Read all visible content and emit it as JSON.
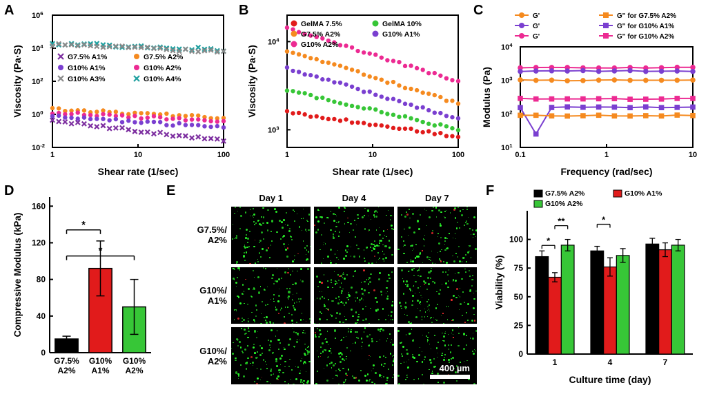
{
  "panels": {
    "A": "A",
    "B": "B",
    "C": "C",
    "D": "D",
    "E": "E",
    "F": "F"
  },
  "colors": {
    "red": "#e11b1b",
    "orange": "#f58a1f",
    "green": "#37c637",
    "purple": "#7a3fd0",
    "magenta": "#ec2a92",
    "teal": "#1fa0a0",
    "gray": "#8a8a8a",
    "darkpurple": "#7d2fa0",
    "black": "#000000",
    "axis": "#000000",
    "bg": "#ffffff",
    "imgBg": "#000000",
    "cellGreen": "#2bff2b",
    "cellRed": "#ff3030"
  },
  "A": {
    "title": "",
    "xlabel": "Shear rate (1/sec)",
    "ylabel": "Viscosity (Pa·S)",
    "xlog": [
      1,
      100
    ],
    "ytick_exp": [
      -2,
      0,
      2,
      4,
      6
    ],
    "legend": [
      {
        "marker": "x",
        "color": "#7d2fa0",
        "label": "G7.5% A1%"
      },
      {
        "marker": "circle",
        "color": "#f58a1f",
        "label": "G7.5% A2%"
      },
      {
        "marker": "circle",
        "color": "#7a3fd0",
        "label": "G10% A1%"
      },
      {
        "marker": "circle",
        "color": "#ec2a92",
        "label": "G10% A2%"
      },
      {
        "marker": "x",
        "color": "#8a8a8a",
        "label": "G10% A3%"
      },
      {
        "marker": "x",
        "color": "#1fa0a0",
        "label": "G10% A4%"
      }
    ],
    "series": [
      {
        "color": "#1fa0a0",
        "marker": "x",
        "yExpStart": 4.3,
        "yExpEnd": 3.9
      },
      {
        "color": "#8a8a8a",
        "marker": "x",
        "yExpStart": 4.2,
        "yExpEnd": 3.8
      },
      {
        "color": "#f58a1f",
        "marker": "circle",
        "yExpStart": 0.3,
        "yExpEnd": -0.2
      },
      {
        "color": "#ec2a92",
        "marker": "circle",
        "yExpStart": 0.1,
        "yExpEnd": -0.4
      },
      {
        "color": "#7a3fd0",
        "marker": "circle",
        "yExpStart": -0.1,
        "yExpEnd": -0.8
      },
      {
        "color": "#7d2fa0",
        "marker": "x",
        "yExpStart": -0.4,
        "yExpEnd": -1.6
      }
    ],
    "n": 28
  },
  "B": {
    "xlabel": "Shear rate (1/sec)",
    "ylabel": "Viscosity (Pa·S)",
    "xlog": [
      1,
      100
    ],
    "ytick_exp": [
      3,
      4
    ],
    "legend": [
      {
        "marker": "circle",
        "color": "#e11b1b",
        "label": "GelMA 7.5%"
      },
      {
        "marker": "circle",
        "color": "#37c637",
        "label": "GelMA 10%"
      },
      {
        "marker": "circle",
        "color": "#f58a1f",
        "label": "G7.5% A2%"
      },
      {
        "marker": "circle",
        "color": "#7a3fd0",
        "label": "G10% A1%"
      },
      {
        "marker": "circle",
        "color": "#ec2a92",
        "label": "G10% A2%"
      }
    ],
    "series": [
      {
        "color": "#ec2a92",
        "yExpStart": 4.15,
        "yExpEnd": 3.55
      },
      {
        "color": "#f58a1f",
        "yExpStart": 3.9,
        "yExpEnd": 3.3
      },
      {
        "color": "#7a3fd0",
        "yExpStart": 3.7,
        "yExpEnd": 3.12
      },
      {
        "color": "#37c637",
        "yExpStart": 3.45,
        "yExpEnd": 3.0
      },
      {
        "color": "#e11b1b",
        "yExpStart": 3.2,
        "yExpEnd": 2.92
      }
    ],
    "n": 30
  },
  "C": {
    "xlabel": "Frequency (rad/sec)",
    "ylabel": "Modulus (Pa)",
    "xlog": [
      0.1,
      10
    ],
    "ytick_exp": [
      1,
      2,
      3,
      4
    ],
    "legend": [
      {
        "marker": "circle",
        "color": "#f58a1f",
        "label": "G'"
      },
      {
        "marker": "square",
        "color": "#f58a1f",
        "label": "G'' for G7.5% A2%"
      },
      {
        "marker": "circle",
        "color": "#7a3fd0",
        "label": "G'"
      },
      {
        "marker": "square",
        "color": "#7a3fd0",
        "label": "G'' for G10% A1%"
      },
      {
        "marker": "circle",
        "color": "#ec2a92",
        "label": "G'"
      },
      {
        "marker": "square",
        "color": "#ec2a92",
        "label": "G'' for G10% A2%"
      }
    ],
    "lines": [
      {
        "color": "#ec2a92",
        "marker": "circle",
        "yExp": 3.38
      },
      {
        "color": "#7a3fd0",
        "marker": "circle",
        "yExp": 3.28
      },
      {
        "color": "#f58a1f",
        "marker": "circle",
        "yExp": 3.0
      },
      {
        "color": "#ec2a92",
        "marker": "square",
        "yExp": 2.45
      },
      {
        "color": "#7a3fd0",
        "marker": "square",
        "yExp": 2.2,
        "dipAt": 1,
        "dipYExp": 1.4
      },
      {
        "color": "#f58a1f",
        "marker": "square",
        "yExp": 1.95
      }
    ],
    "n": 12
  },
  "D": {
    "xlabel": "",
    "ylabel": "Compressive Modulus (kPa)",
    "ylim": [
      0,
      170
    ],
    "yticks": [
      0,
      40,
      80,
      120,
      160
    ],
    "bars": [
      {
        "label1": "G7.5%",
        "label2": "A2%",
        "value": 15,
        "err": 3,
        "color": "#000000"
      },
      {
        "label1": "G10%",
        "label2": "A1%",
        "value": 92,
        "err": 30,
        "color": "#e11b1b"
      },
      {
        "label1": "G10%",
        "label2": "A2%",
        "value": 50,
        "err": 30,
        "color": "#37c637"
      }
    ],
    "sig": [
      {
        "from": 0,
        "to": 1,
        "label": "*"
      },
      {
        "from": 0,
        "to": 2,
        "label": "*"
      }
    ]
  },
  "E": {
    "cols": [
      "Day 1",
      "Day 4",
      "Day 7"
    ],
    "rows": [
      {
        "l1": "G7.5%/",
        "l2": "A2%"
      },
      {
        "l1": "G10%/",
        "l2": "A1%"
      },
      {
        "l1": "G10%/",
        "l2": "A2%"
      }
    ],
    "scalebar": {
      "label": "400 µm",
      "widthPx": 58
    }
  },
  "F": {
    "xlabel": "Culture time (day)",
    "ylabel": "Viability (%)",
    "ylim": [
      0,
      125
    ],
    "yticks": [
      0,
      25,
      50,
      75,
      100
    ],
    "groups": [
      "1",
      "4",
      "7"
    ],
    "series": [
      {
        "label": "G7.5% A2%",
        "color": "#000000"
      },
      {
        "label": "G10% A1%",
        "color": "#e11b1b"
      },
      {
        "label": "G10% A2%",
        "color": "#37c637"
      }
    ],
    "values": [
      [
        85,
        67,
        95
      ],
      [
        90,
        76,
        86
      ],
      [
        96,
        91,
        95
      ]
    ],
    "errors": [
      [
        5,
        4,
        5
      ],
      [
        4,
        8,
        6
      ],
      [
        5,
        6,
        5
      ]
    ],
    "sig": [
      {
        "g": 0,
        "a": 0,
        "b": 1,
        "label": "*"
      },
      {
        "g": 0,
        "a": 1,
        "b": 2,
        "label": "**"
      },
      {
        "g": 1,
        "a": 0,
        "b": 1,
        "label": "*"
      }
    ]
  }
}
